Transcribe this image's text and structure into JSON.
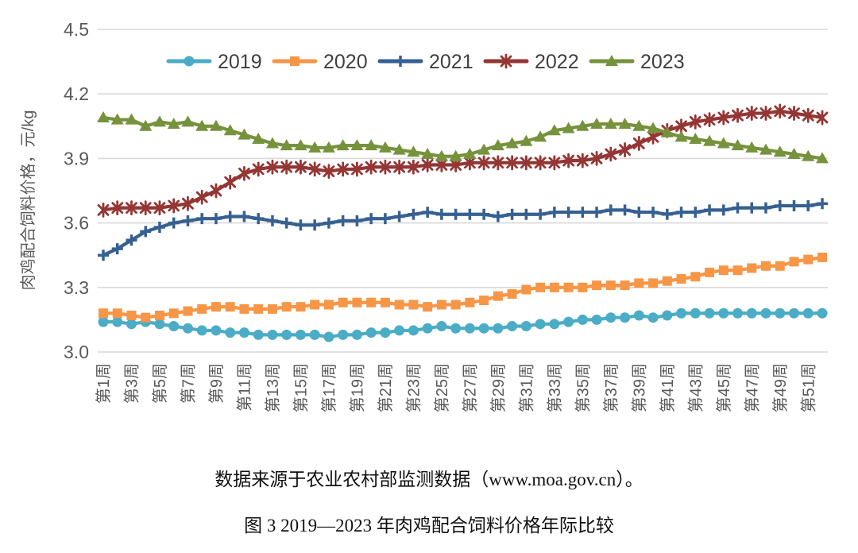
{
  "chart_data": {
    "type": "line",
    "title": "图 3 2019—2023 年肉鸡配合饲料价格年际比较",
    "ylabel": "肉鸡配合饲料价格，元/kg",
    "xlabel": "",
    "ylim": [
      3.0,
      4.5
    ],
    "yticks": [
      3.0,
      3.3,
      3.6,
      3.9,
      4.2,
      4.5
    ],
    "grid": "horizontal-only",
    "legend_position": "top-center",
    "x_weeks": 52,
    "xtick_labels": [
      "第1周",
      "第3周",
      "第5周",
      "第7周",
      "第9周",
      "第11周",
      "第13周",
      "第15周",
      "第17周",
      "第19周",
      "第21周",
      "第23周",
      "第25周",
      "第27周",
      "第29周",
      "第31周",
      "第33周",
      "第35周",
      "第37周",
      "第39周",
      "第41周",
      "第43周",
      "第45周",
      "第47周",
      "第49周",
      "第51周"
    ],
    "series": [
      {
        "name": "2019",
        "color": "#4BACC6",
        "marker": "circle",
        "values": [
          3.14,
          3.14,
          3.13,
          3.14,
          3.13,
          3.12,
          3.11,
          3.1,
          3.1,
          3.09,
          3.09,
          3.08,
          3.08,
          3.08,
          3.08,
          3.08,
          3.07,
          3.08,
          3.08,
          3.09,
          3.09,
          3.1,
          3.1,
          3.11,
          3.12,
          3.11,
          3.11,
          3.11,
          3.11,
          3.12,
          3.12,
          3.13,
          3.13,
          3.14,
          3.15,
          3.15,
          3.16,
          3.16,
          3.17,
          3.16,
          3.17,
          3.18,
          3.18,
          3.18,
          3.18,
          3.18,
          3.18,
          3.18,
          3.18,
          3.18,
          3.18,
          3.18
        ]
      },
      {
        "name": "2020",
        "color": "#F79646",
        "marker": "square",
        "values": [
          3.18,
          3.18,
          3.17,
          3.16,
          3.17,
          3.18,
          3.19,
          3.2,
          3.21,
          3.21,
          3.2,
          3.2,
          3.2,
          3.21,
          3.21,
          3.22,
          3.22,
          3.23,
          3.23,
          3.23,
          3.23,
          3.22,
          3.22,
          3.21,
          3.22,
          3.22,
          3.23,
          3.24,
          3.26,
          3.27,
          3.29,
          3.3,
          3.3,
          3.3,
          3.3,
          3.31,
          3.31,
          3.31,
          3.32,
          3.32,
          3.33,
          3.34,
          3.35,
          3.37,
          3.38,
          3.38,
          3.39,
          3.4,
          3.4,
          3.42,
          3.43,
          3.44
        ]
      },
      {
        "name": "2021",
        "color": "#366092",
        "marker": "plus",
        "values": [
          3.45,
          3.48,
          3.52,
          3.56,
          3.58,
          3.6,
          3.61,
          3.62,
          3.62,
          3.63,
          3.63,
          3.62,
          3.61,
          3.6,
          3.59,
          3.59,
          3.6,
          3.61,
          3.61,
          3.62,
          3.62,
          3.63,
          3.64,
          3.65,
          3.64,
          3.64,
          3.64,
          3.64,
          3.63,
          3.64,
          3.64,
          3.64,
          3.65,
          3.65,
          3.65,
          3.65,
          3.66,
          3.66,
          3.65,
          3.65,
          3.64,
          3.65,
          3.65,
          3.66,
          3.66,
          3.67,
          3.67,
          3.67,
          3.68,
          3.68,
          3.68,
          3.69
        ]
      },
      {
        "name": "2022",
        "color": "#943634",
        "marker": "star",
        "values": [
          3.66,
          3.67,
          3.67,
          3.67,
          3.67,
          3.68,
          3.69,
          3.72,
          3.75,
          3.79,
          3.83,
          3.85,
          3.86,
          3.86,
          3.86,
          3.85,
          3.84,
          3.85,
          3.85,
          3.86,
          3.86,
          3.86,
          3.86,
          3.87,
          3.87,
          3.87,
          3.88,
          3.88,
          3.88,
          3.88,
          3.88,
          3.88,
          3.88,
          3.89,
          3.89,
          3.9,
          3.92,
          3.94,
          3.97,
          4.0,
          4.03,
          4.05,
          4.07,
          4.08,
          4.09,
          4.1,
          4.11,
          4.11,
          4.12,
          4.11,
          4.1,
          4.09
        ]
      },
      {
        "name": "2023",
        "color": "#76923C",
        "marker": "triangle",
        "values": [
          4.09,
          4.08,
          4.08,
          4.05,
          4.07,
          4.06,
          4.07,
          4.05,
          4.05,
          4.03,
          4.01,
          3.99,
          3.97,
          3.96,
          3.96,
          3.95,
          3.95,
          3.96,
          3.96,
          3.96,
          3.95,
          3.94,
          3.93,
          3.92,
          3.91,
          3.91,
          3.92,
          3.94,
          3.96,
          3.97,
          3.98,
          4.0,
          4.03,
          4.04,
          4.05,
          4.06,
          4.06,
          4.06,
          4.05,
          4.04,
          4.02,
          4.0,
          3.99,
          3.98,
          3.97,
          3.96,
          3.95,
          3.94,
          3.93,
          3.92,
          3.91,
          3.9
        ]
      }
    ]
  },
  "notes": {
    "source": "数据来源于农业农村部监测数据（www.moa.gov.cn）。",
    "caption": "图 3 2019—2023 年肉鸡配合饲料价格年际比较"
  },
  "style": {
    "grid_color": "#D9D9D9",
    "axis_text_color": "#595959",
    "legend_text_color": "#404040",
    "background": "#FFFFFF"
  }
}
